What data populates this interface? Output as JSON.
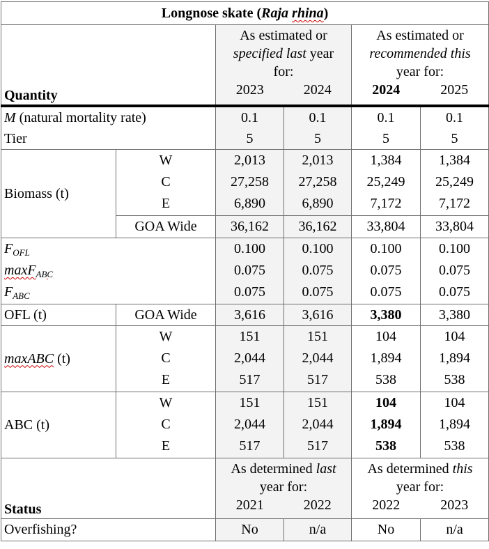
{
  "title": {
    "prefix": "Longnose skate (",
    "sci_genus": "Raja",
    "sci_species": "rhina",
    "suffix": ")"
  },
  "header": {
    "quantity_label": "Quantity",
    "last_year_group": {
      "line1": "As estimated or",
      "line2_italic": "specified last",
      "line2_rest": " year",
      "line3": "for:"
    },
    "this_year_group": {
      "line1": "As estimated or",
      "line2_italic": "recommended this",
      "line3": "year for:"
    },
    "years": [
      "2023",
      "2024",
      "2024",
      "2025"
    ]
  },
  "rows": {
    "m": {
      "label_italic": "M",
      "label_rest": " (natural mortality rate)",
      "values": [
        "0.1",
        "0.1",
        "0.1",
        "0.1"
      ]
    },
    "tier": {
      "label": "Tier",
      "values": [
        "5",
        "5",
        "5",
        "5"
      ]
    },
    "biomass": {
      "label": "Biomass (t)",
      "regions": [
        "W",
        "C",
        "E"
      ],
      "values": [
        [
          "2,013",
          "2,013",
          "1,384",
          "1,384"
        ],
        [
          "27,258",
          "27,258",
          "25,249",
          "25,249"
        ],
        [
          "6,890",
          "6,890",
          "7,172",
          "7,172"
        ]
      ],
      "goa_label": "GOA Wide",
      "goa_values": [
        "36,162",
        "36,162",
        "33,804",
        "33,804"
      ]
    },
    "f": {
      "fofl_label": "F",
      "fofl_sub": "OFL",
      "maxfabc_prefix": "maxF",
      "maxfabc_sub": "ABC",
      "fabc_label": "F",
      "fabc_sub": "ABC",
      "values": [
        [
          "0.100",
          "0.100",
          "0.100",
          "0.100"
        ],
        [
          "0.075",
          "0.075",
          "0.075",
          "0.075"
        ],
        [
          "0.075",
          "0.075",
          "0.075",
          "0.075"
        ]
      ]
    },
    "ofl": {
      "label": "OFL (t)",
      "region": "GOA Wide",
      "values": [
        "3,616",
        "3,616",
        "3,380",
        "3,380"
      ]
    },
    "maxabc": {
      "label_prefix": "maxABC",
      "label_rest": " (t)",
      "regions": [
        "W",
        "C",
        "E"
      ],
      "values": [
        [
          "151",
          "151",
          "104",
          "104"
        ],
        [
          "2,044",
          "2,044",
          "1,894",
          "1,894"
        ],
        [
          "517",
          "517",
          "538",
          "538"
        ]
      ]
    },
    "abc": {
      "label": "ABC (t)",
      "regions": [
        "W",
        "C",
        "E"
      ],
      "values": [
        [
          "151",
          "151",
          "104",
          "104"
        ],
        [
          "2,044",
          "2,044",
          "1,894",
          "1,894"
        ],
        [
          "517",
          "517",
          "538",
          "538"
        ]
      ]
    }
  },
  "status": {
    "label": "Status",
    "last_group": {
      "line1_pre": "As determined ",
      "line1_italic": "last",
      "line2": "year for:"
    },
    "this_group": {
      "line1_pre": "As determined ",
      "line1_italic": "this",
      "line2": "year for:"
    },
    "years": [
      "2021",
      "2022",
      "2022",
      "2023"
    ],
    "overfishing_label": "Overfishing?",
    "overfishing_values": [
      "No",
      "n/a",
      "No",
      "n/a"
    ]
  }
}
